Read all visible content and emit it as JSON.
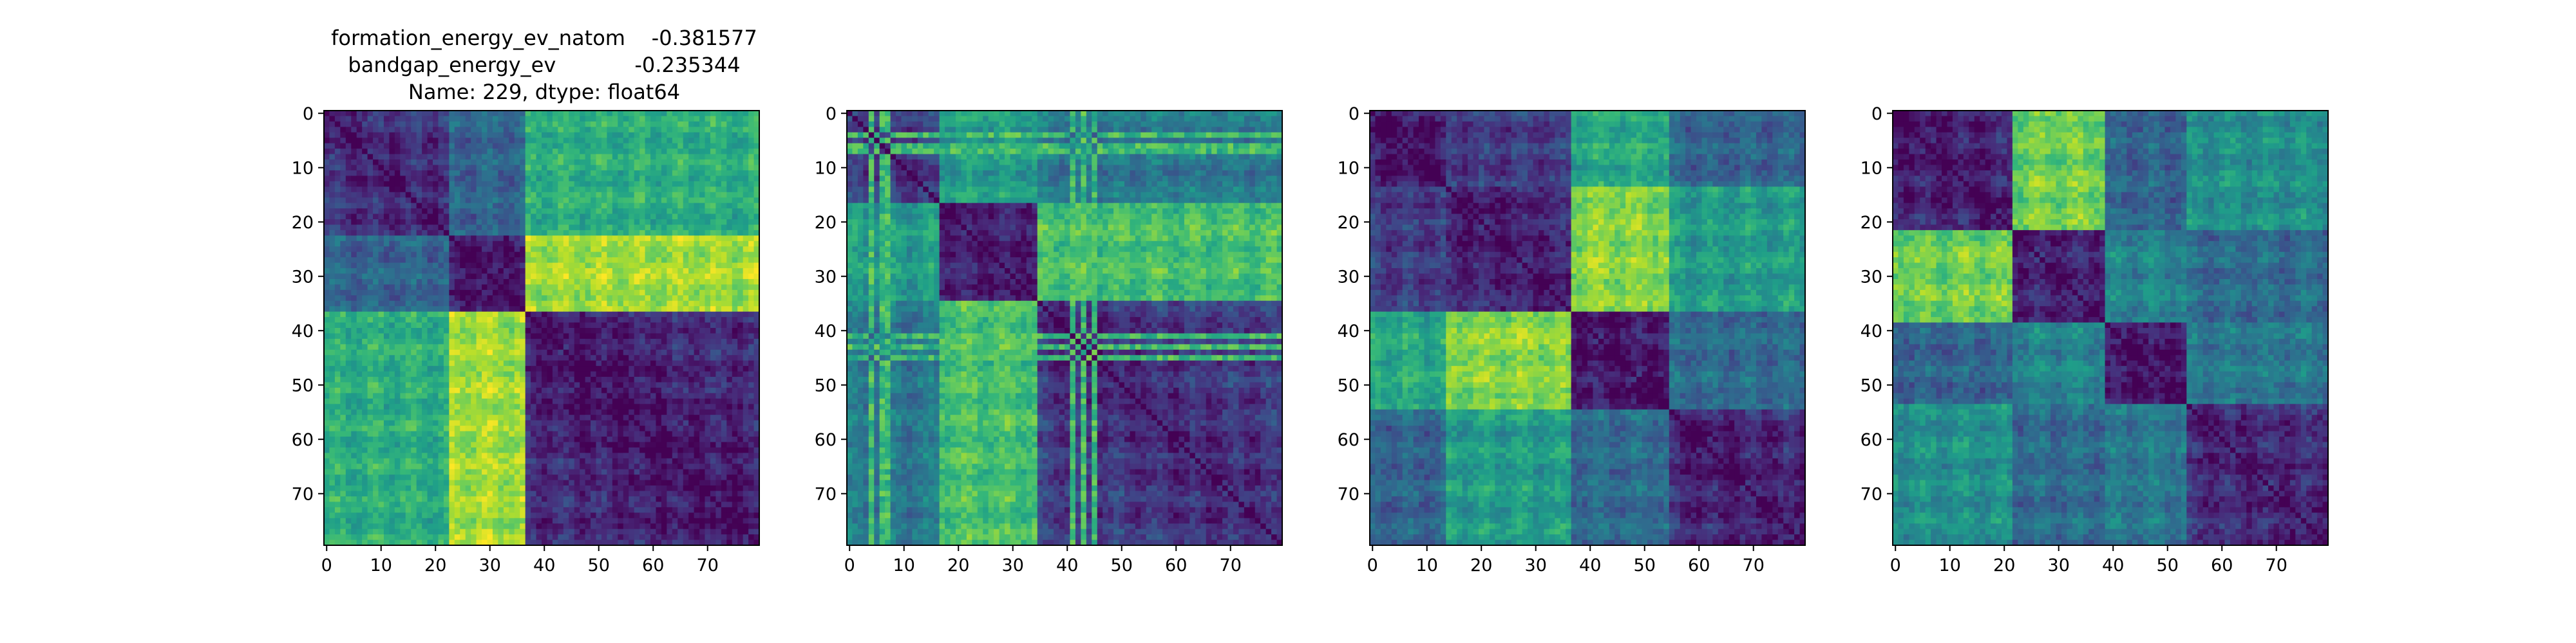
{
  "figure": {
    "title_lines": [
      "formation_energy_ev_natom    -0.381577",
      "bandgap_energy_ev            -0.235344",
      "Name: 229, dtype: float64"
    ]
  },
  "colormap": "viridis",
  "chart_data": [
    {
      "type": "heatmap",
      "title": "",
      "size": 80,
      "xlim": [
        0,
        79
      ],
      "ylim": [
        79,
        0
      ],
      "x_ticks": [
        0,
        10,
        20,
        30,
        40,
        50,
        60,
        70
      ],
      "y_ticks": [
        0,
        10,
        20,
        30,
        40,
        50,
        60,
        70
      ],
      "blocks": [
        [
          0,
          23
        ],
        [
          23,
          37
        ],
        [
          37,
          80
        ]
      ],
      "block_intensity": [
        [
          0.18,
          0.32,
          0.62
        ],
        [
          0.32,
          0.12,
          0.86
        ],
        [
          0.62,
          0.86,
          0.12
        ]
      ],
      "stripe_rows": []
    },
    {
      "type": "heatmap",
      "title": "",
      "size": 80,
      "xlim": [
        0,
        79
      ],
      "ylim": [
        79,
        0
      ],
      "x_ticks": [
        0,
        10,
        20,
        30,
        40,
        50,
        60,
        70
      ],
      "y_ticks": [
        0,
        10,
        20,
        30,
        40,
        50,
        60,
        70
      ],
      "blocks": [
        [
          0,
          17
        ],
        [
          17,
          35
        ],
        [
          35,
          80
        ]
      ],
      "block_intensity": [
        [
          0.22,
          0.55,
          0.4
        ],
        [
          0.55,
          0.15,
          0.7
        ],
        [
          0.4,
          0.7,
          0.18
        ]
      ],
      "stripe_rows": [
        4,
        6,
        7,
        41,
        43,
        45
      ]
    },
    {
      "type": "heatmap",
      "title": "",
      "size": 80,
      "xlim": [
        0,
        79
      ],
      "ylim": [
        79,
        0
      ],
      "x_ticks": [
        0,
        10,
        20,
        30,
        40,
        50,
        60,
        70
      ],
      "y_ticks": [
        0,
        10,
        20,
        30,
        40,
        50,
        60,
        70
      ],
      "blocks": [
        [
          0,
          14
        ],
        [
          14,
          37
        ],
        [
          37,
          55
        ],
        [
          55,
          80
        ]
      ],
      "block_intensity": [
        [
          0.12,
          0.18,
          0.6,
          0.32
        ],
        [
          0.18,
          0.14,
          0.82,
          0.55
        ],
        [
          0.6,
          0.82,
          0.12,
          0.35
        ],
        [
          0.32,
          0.55,
          0.35,
          0.14
        ]
      ],
      "stripe_rows": []
    },
    {
      "type": "heatmap",
      "title": "",
      "size": 80,
      "xlim": [
        0,
        79
      ],
      "ylim": [
        79,
        0
      ],
      "x_ticks": [
        0,
        10,
        20,
        30,
        40,
        50,
        60,
        70
      ],
      "y_ticks": [
        0,
        10,
        20,
        30,
        40,
        50,
        60,
        70
      ],
      "blocks": [
        [
          0,
          22
        ],
        [
          22,
          39
        ],
        [
          39,
          54
        ],
        [
          54,
          80
        ]
      ],
      "block_intensity": [
        [
          0.14,
          0.78,
          0.32,
          0.5
        ],
        [
          0.78,
          0.16,
          0.45,
          0.35
        ],
        [
          0.32,
          0.45,
          0.12,
          0.4
        ],
        [
          0.5,
          0.35,
          0.4,
          0.16
        ]
      ],
      "stripe_rows": []
    }
  ]
}
